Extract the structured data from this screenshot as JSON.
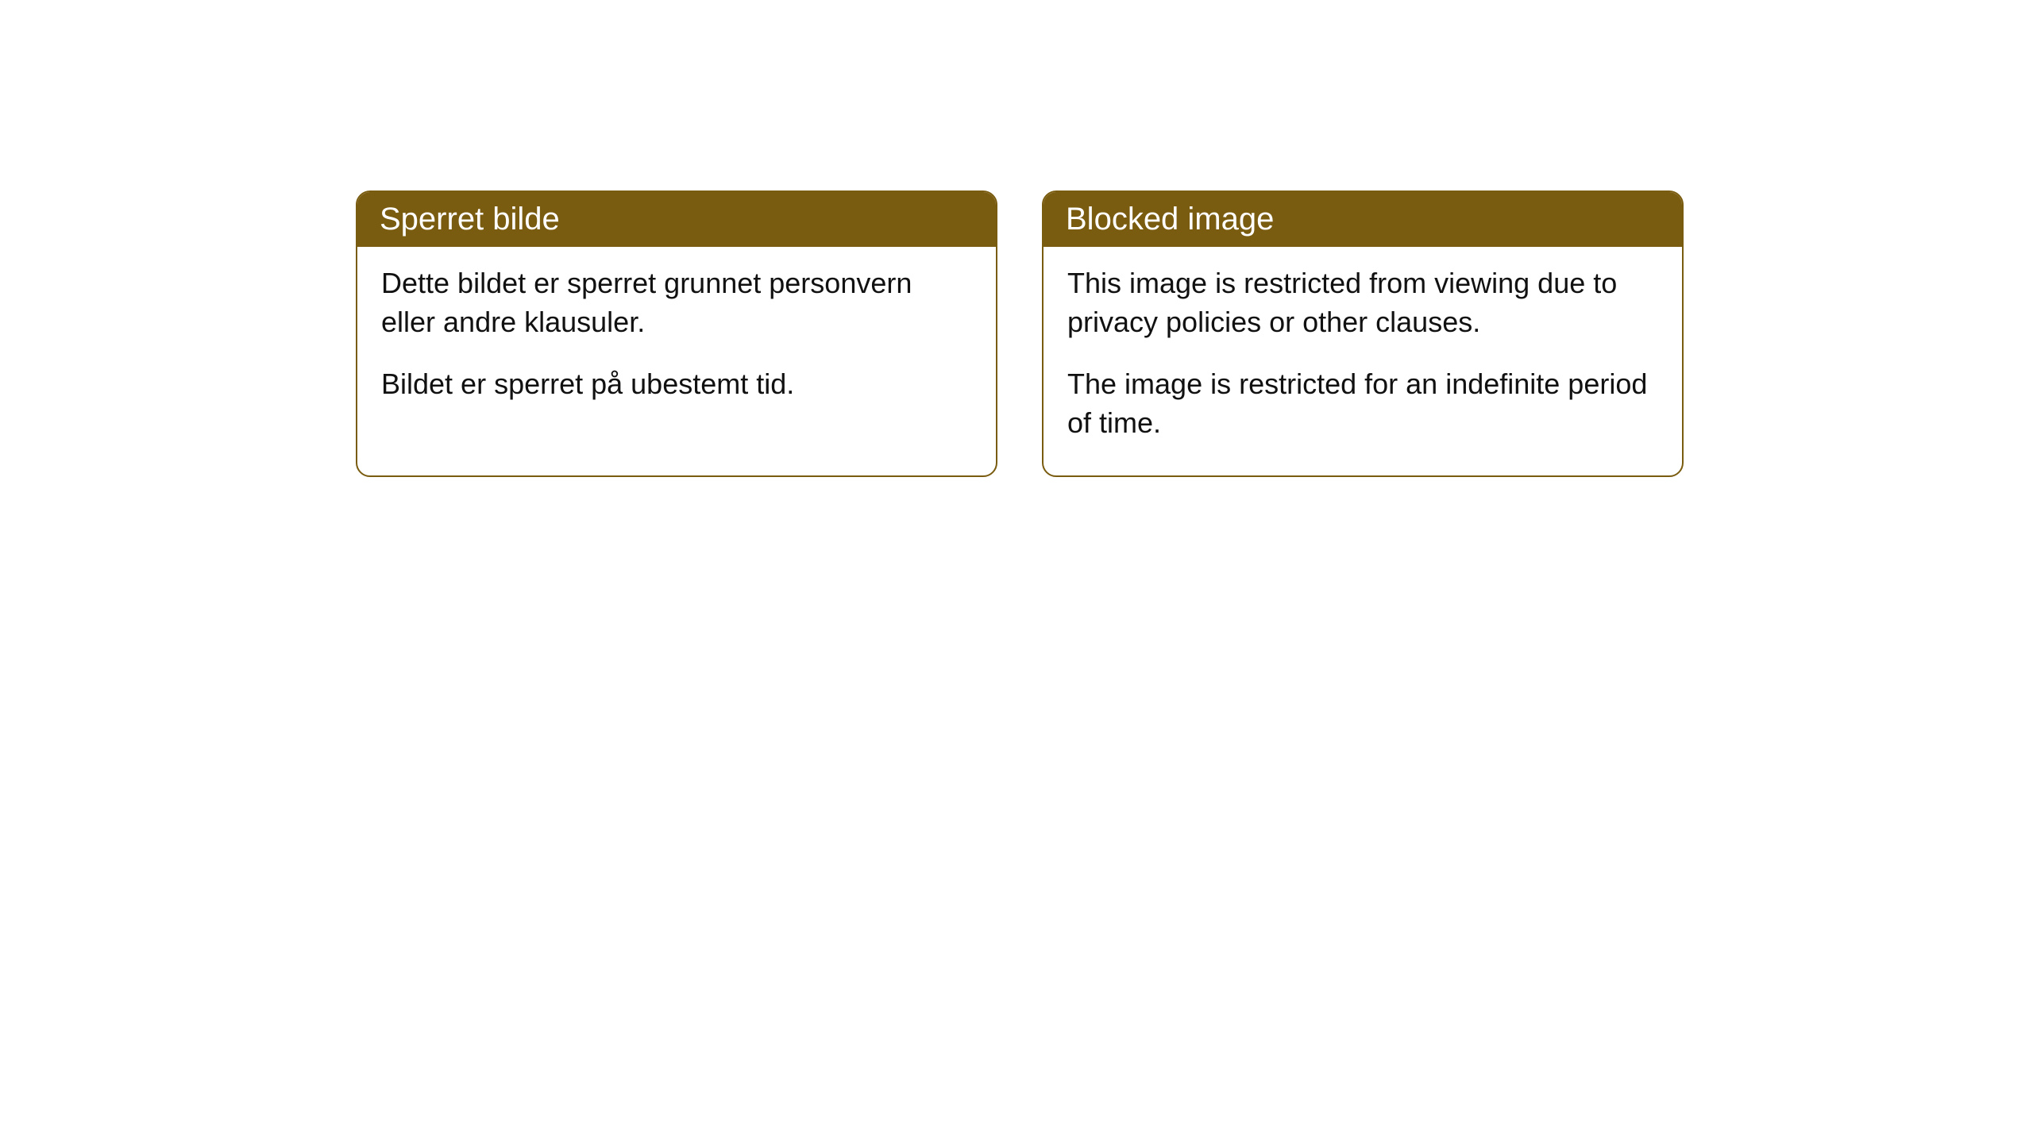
{
  "cards": [
    {
      "header": "Sperret bilde",
      "paragraph1": "Dette bildet er sperret grunnet personvern eller andre klausuler.",
      "paragraph2": "Bildet er sperret på ubestemt tid."
    },
    {
      "header": "Blocked image",
      "paragraph1": "This image is restricted from viewing due to privacy policies or other clauses.",
      "paragraph2": "The image is restricted for an indefinite period of time."
    }
  ],
  "styles": {
    "header_background": "#7a5c10",
    "header_text_color": "#ffffff",
    "border_color": "#7a5c10",
    "body_text_color": "#111111",
    "page_background": "#ffffff",
    "border_radius": 18,
    "header_fontsize": 40,
    "body_fontsize": 36
  }
}
